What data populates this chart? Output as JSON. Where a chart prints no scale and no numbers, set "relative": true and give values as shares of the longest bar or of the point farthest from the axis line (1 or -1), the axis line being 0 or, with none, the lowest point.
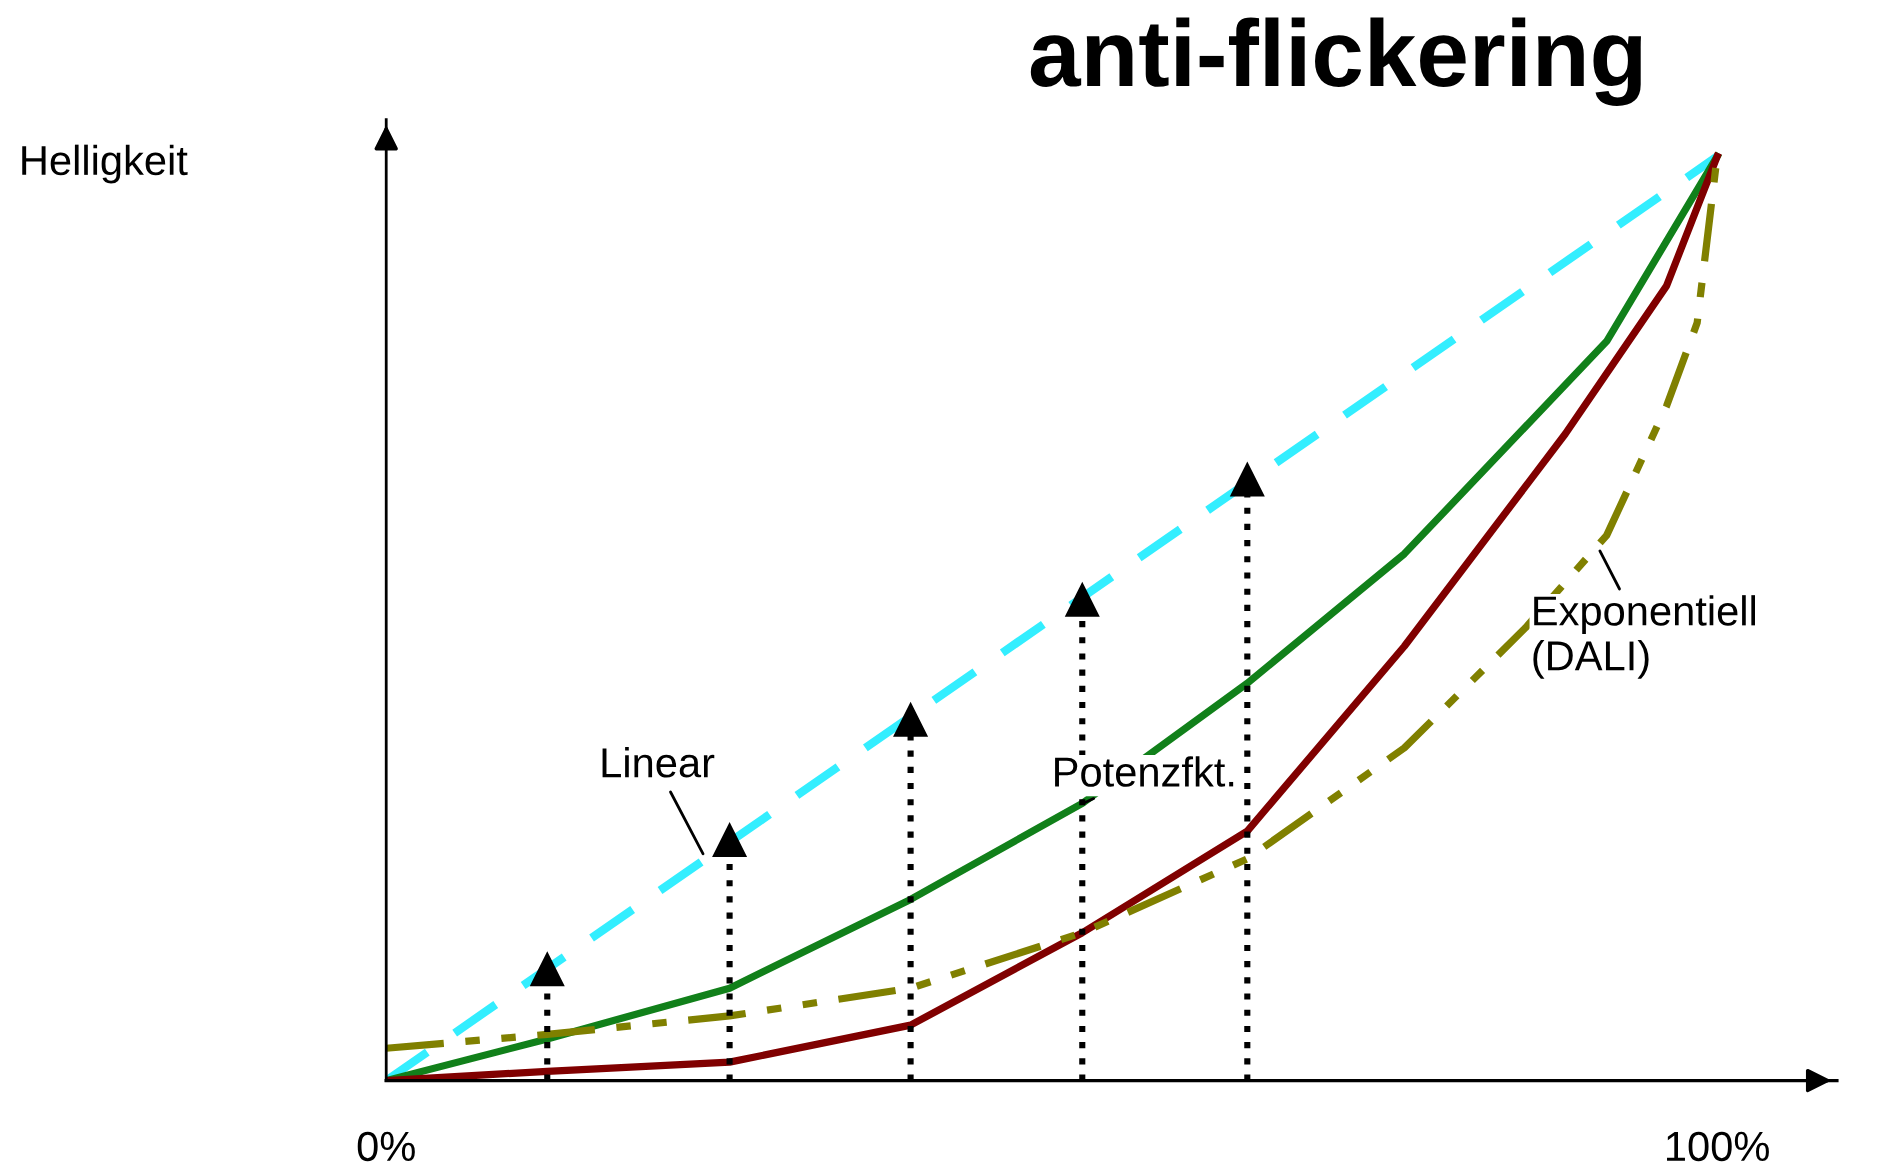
{
  "chart_data": {
    "type": "line",
    "title": "anti-flickering",
    "ylabel": "Helligkeit",
    "relative": true,
    "xlim": [
      0,
      109
    ],
    "xticks": [
      {
        "value": 0,
        "label": "0%"
      },
      {
        "value": 100,
        "label": "100%"
      }
    ],
    "grid": false,
    "legend": false,
    "tick_labels": "x",
    "series": [
      {
        "name": "Linear",
        "color": "#33eeff",
        "line_style": "dashed",
        "marker": "none",
        "x": [
          0,
          100
        ],
        "values": [
          0,
          1
        ]
      },
      {
        "name": "Potenzfkt.",
        "color": "#11801a",
        "line_style": "solid",
        "marker": "none",
        "x": [
          0,
          12.1,
          25.8,
          39.4,
          52.3,
          64.7,
          76.5,
          91.7,
          100
        ],
        "values": [
          0,
          0.045,
          0.1,
          0.196,
          0.3,
          0.43,
          0.57,
          0.8,
          1
        ]
      },
      {
        "color": "#800000",
        "line_style": "solid",
        "marker": "none",
        "x": [
          0,
          12.1,
          25.8,
          39.4,
          52.3,
          64.7,
          76.5,
          88.6,
          96.2,
          100
        ],
        "values": [
          0,
          0.01,
          0.02,
          0.06,
          0.16,
          0.27,
          0.47,
          0.7,
          0.86,
          1
        ]
      },
      {
        "name": "Exponentiell (DALI)",
        "color": "#808000",
        "line_style": "dashdot",
        "marker": "none",
        "x": [
          0,
          12.1,
          25.8,
          39.4,
          52.3,
          64.7,
          76.5,
          85.6,
          91.7,
          96.2,
          98.5,
          100
        ],
        "values": [
          0.035,
          0.05,
          0.07,
          0.1,
          0.16,
          0.24,
          0.36,
          0.49,
          0.59,
          0.73,
          0.82,
          1
        ]
      },
      {
        "type": "lollipop",
        "color": "#000000",
        "line_style": "dotted",
        "marker": "triangle",
        "x": [
          12.1,
          25.8,
          39.4,
          52.3,
          64.7
        ],
        "values": [
          0.12,
          0.26,
          0.39,
          0.52,
          0.65
        ]
      }
    ]
  }
}
